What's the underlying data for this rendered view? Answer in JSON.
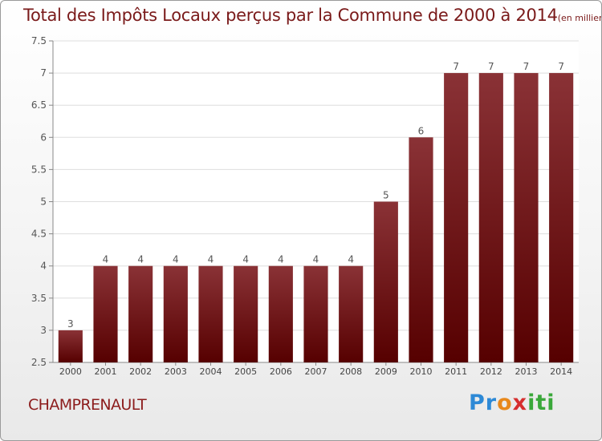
{
  "header": {
    "title": "Total des Impôts Locaux perçus par la Commune de 2000 à 2014",
    "unit_note": "(en milliers d'€)"
  },
  "footer": {
    "commune": "CHAMPRENAULT",
    "logo": "Proxiti"
  },
  "colors": {
    "bar_top": "#8a3236",
    "bar_bottom": "#560000",
    "title": "#7a1a1a",
    "grid": "#dedede"
  },
  "chart_data": {
    "type": "bar",
    "categories": [
      "2000",
      "2001",
      "2002",
      "2003",
      "2004",
      "2005",
      "2006",
      "2007",
      "2008",
      "2009",
      "2010",
      "2011",
      "2012",
      "2013",
      "2014"
    ],
    "values": [
      3,
      4,
      4,
      4,
      4,
      4,
      4,
      4,
      4,
      5,
      6,
      7,
      7,
      7,
      7
    ],
    "data_labels": [
      "3",
      "4",
      "4",
      "4",
      "4",
      "4",
      "4",
      "4",
      "4",
      "5",
      "6",
      "7",
      "7",
      "7",
      "7"
    ],
    "ylim": [
      2.5,
      7.5
    ],
    "yticks": [
      "2.5",
      "3",
      "3.5",
      "4",
      "4.5",
      "5",
      "5.5",
      "6",
      "6.5",
      "7",
      "7.5"
    ],
    "grid": true,
    "xlabel": "",
    "ylabel": ""
  }
}
